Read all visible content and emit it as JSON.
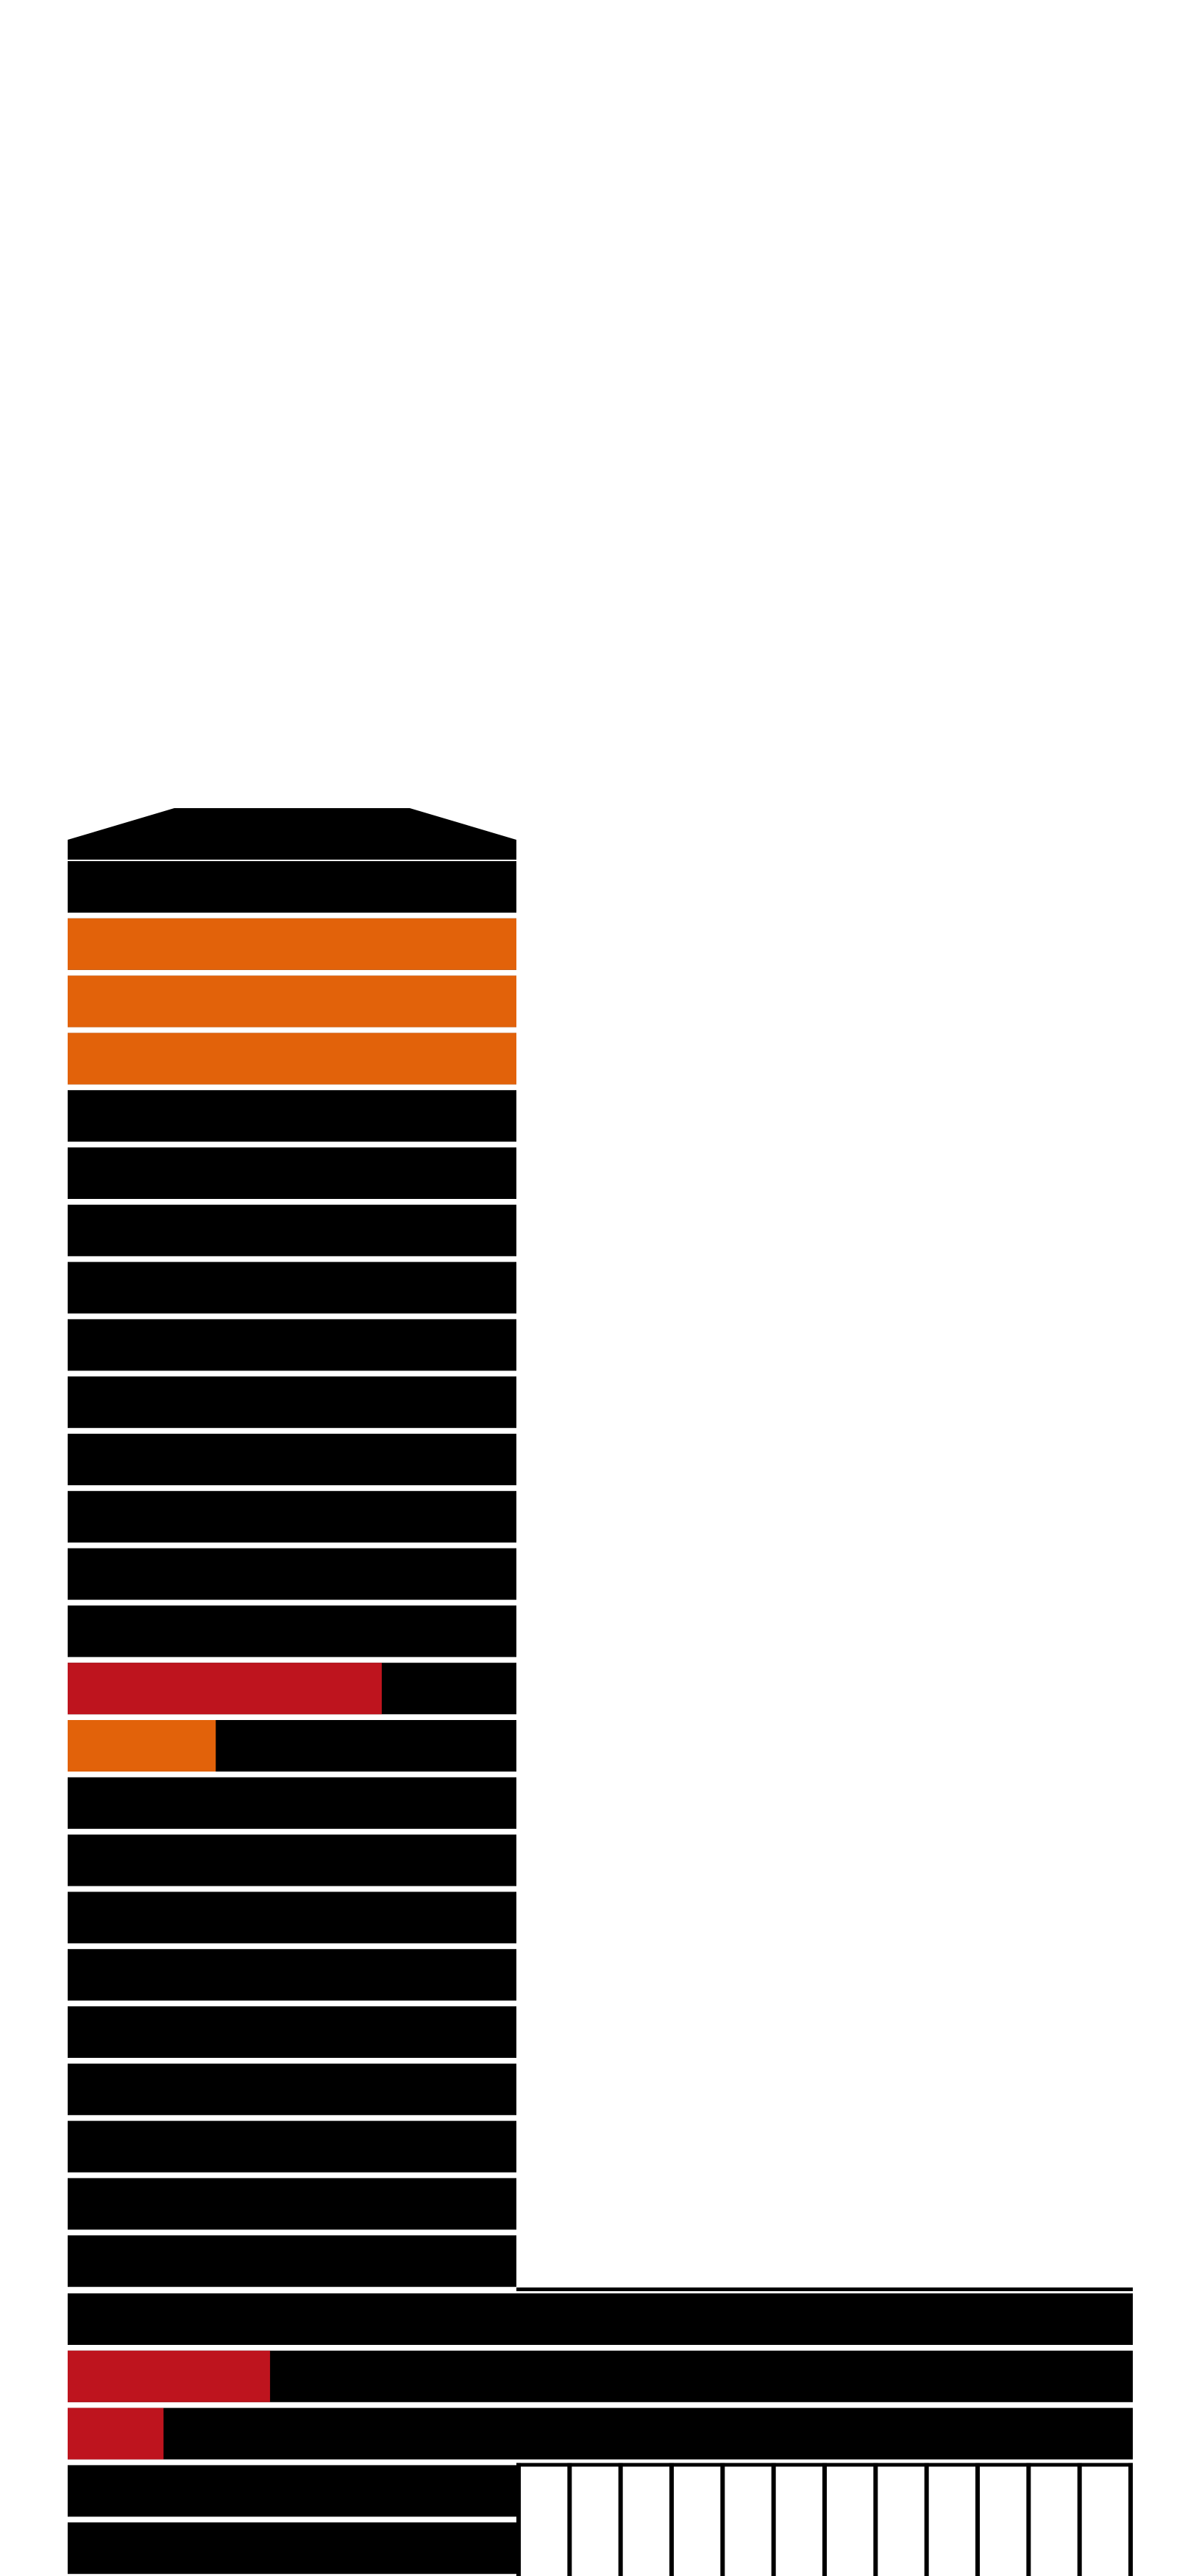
{
  "diagram": {
    "colors": {
      "background": "#ffffff",
      "floor": "#000000",
      "separator": "#ffffff",
      "orange_highlight": "#e2620a",
      "red_highlight": "#be141e"
    },
    "tower_floors": [
      {
        "status": "normal"
      },
      {
        "status": "orange",
        "fill": 1.0
      },
      {
        "status": "orange",
        "fill": 1.0
      },
      {
        "status": "orange",
        "fill": 1.0
      },
      {
        "status": "normal"
      },
      {
        "status": "normal"
      },
      {
        "status": "normal"
      },
      {
        "status": "normal"
      },
      {
        "status": "normal"
      },
      {
        "status": "normal"
      },
      {
        "status": "normal"
      },
      {
        "status": "normal"
      },
      {
        "status": "normal"
      },
      {
        "status": "normal"
      },
      {
        "status": "red",
        "fill": 0.7
      },
      {
        "status": "orange",
        "fill": 0.33
      },
      {
        "status": "normal"
      },
      {
        "status": "normal"
      },
      {
        "status": "normal"
      },
      {
        "status": "normal"
      },
      {
        "status": "normal"
      },
      {
        "status": "normal"
      },
      {
        "status": "normal"
      },
      {
        "status": "normal"
      },
      {
        "status": "normal"
      }
    ],
    "podium_floors": [
      {
        "status": "normal"
      },
      {
        "status": "red",
        "fill": 0.19
      },
      {
        "status": "red",
        "fill": 0.09
      }
    ],
    "base_floors": [
      {
        "status": "normal"
      },
      {
        "status": "normal"
      }
    ],
    "colonnade_columns": 12
  }
}
